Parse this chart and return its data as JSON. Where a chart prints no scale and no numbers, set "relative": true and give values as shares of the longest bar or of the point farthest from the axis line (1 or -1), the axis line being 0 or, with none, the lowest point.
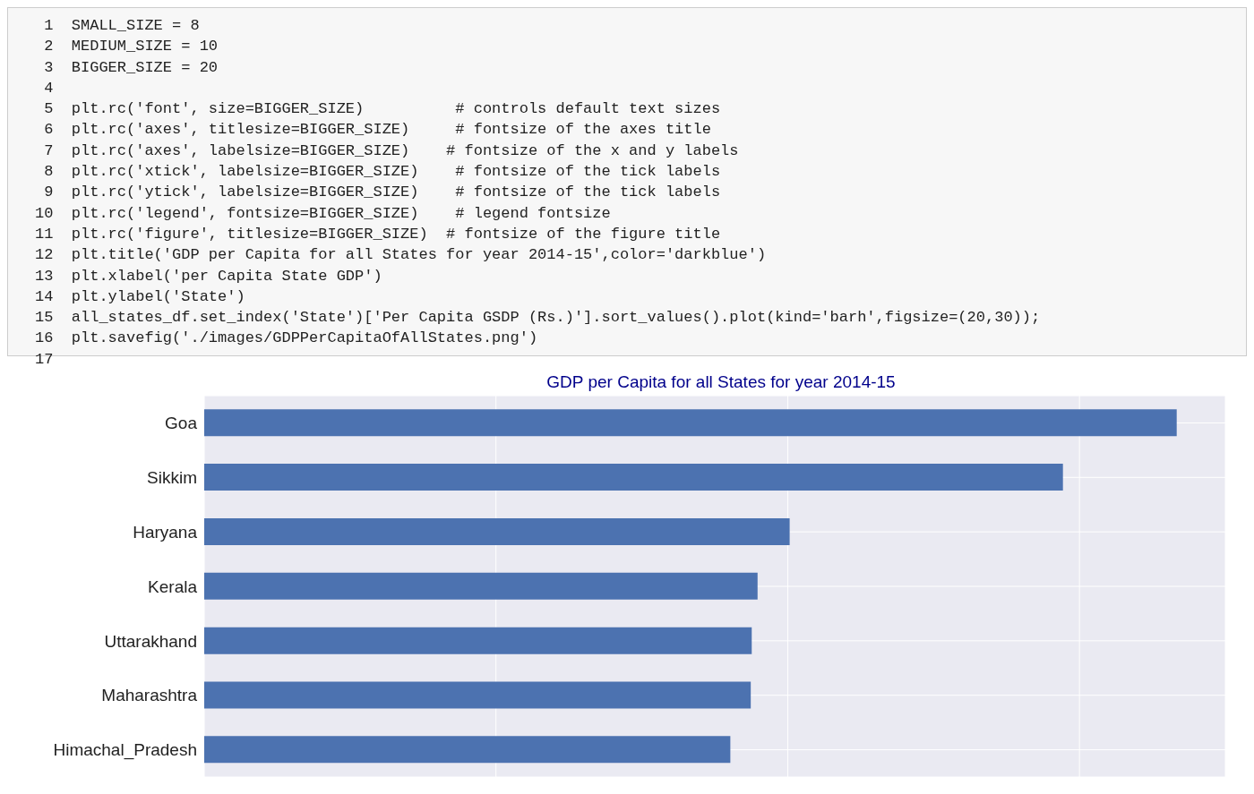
{
  "chart_data": {
    "type": "bar",
    "orientation": "horizontal",
    "relative": true,
    "title": "GDP per Capita for all States for year 2014-15",
    "categories": [
      "Goa",
      "Sikkim",
      "Haryana",
      "Kerala",
      "Uttarakhand",
      "Maharashtra",
      "Himachal_Pradesh"
    ],
    "values": [
      1,
      0.883,
      0.602,
      0.569,
      0.563,
      0.562,
      0.541
    ],
    "color": "#4c72b0",
    "grid": true,
    "annotations": [
      " 1  SMALL_SIZE = 8",
      " 2  MEDIUM_SIZE = 10",
      " 3  BIGGER_SIZE = 20",
      " 4",
      " 5  plt.rc('font', size=BIGGER_SIZE)          # controls default text sizes",
      " 6  plt.rc('axes', titlesize=BIGGER_SIZE)     # fontsize of the axes title",
      " 7  plt.rc('axes', labelsize=BIGGER_SIZE)    # fontsize of the x and y labels",
      " 8  plt.rc('xtick', labelsize=BIGGER_SIZE)    # fontsize of the tick labels",
      " 9  plt.rc('ytick', labelsize=BIGGER_SIZE)    # fontsize of the tick labels",
      "10  plt.rc('legend', fontsize=BIGGER_SIZE)    # legend fontsize",
      "11  plt.rc('figure', titlesize=BIGGER_SIZE)  # fontsize of the figure title",
      "12  plt.title('GDP per Capita for all States for year 2014-15',color='darkblue')",
      "13  plt.xlabel('per Capita State GDP')",
      "14  plt.ylabel('State')",
      "15  all_states_df.set_index('State')['Per Capita GSDP (Rs.)'].sort_values().plot(kind='barh',figsize=(20,30));",
      "16  plt.savefig('./images/GDPPerCapitaOfAllStates.png')",
      "17"
    ]
  }
}
